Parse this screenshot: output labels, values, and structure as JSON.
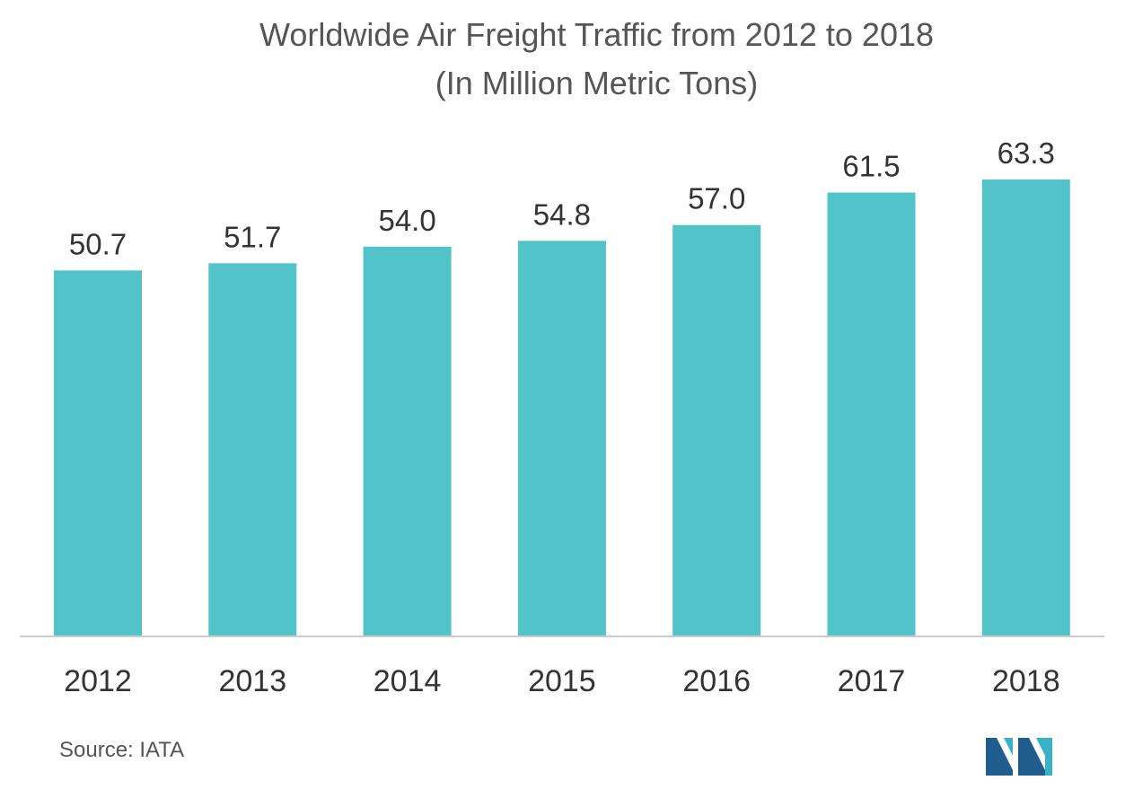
{
  "chart_data": {
    "type": "bar",
    "title": "Worldwide Air Freight Traffic from 2012 to 2018",
    "subtitle": "(In Million Metric Tons)",
    "categories": [
      "2012",
      "2013",
      "2014",
      "2015",
      "2016",
      "2017",
      "2018"
    ],
    "values": [
      50.7,
      51.7,
      54.0,
      54.8,
      57.0,
      61.5,
      63.3
    ],
    "value_labels": [
      "50.7",
      "51.7",
      "54.0",
      "54.8",
      "57.0",
      "61.5",
      "63.3"
    ],
    "xlabel": "",
    "ylabel": "",
    "ylim": [
      0,
      63.3
    ],
    "grid": false,
    "legend": "none",
    "bar_color": "#52c3c8"
  },
  "footer": {
    "source": "Source: IATA"
  },
  "logo": {
    "icon": "mordor-intelligence-logo-icon",
    "colors": [
      "#1f5d8f",
      "#3ab2c4"
    ]
  }
}
